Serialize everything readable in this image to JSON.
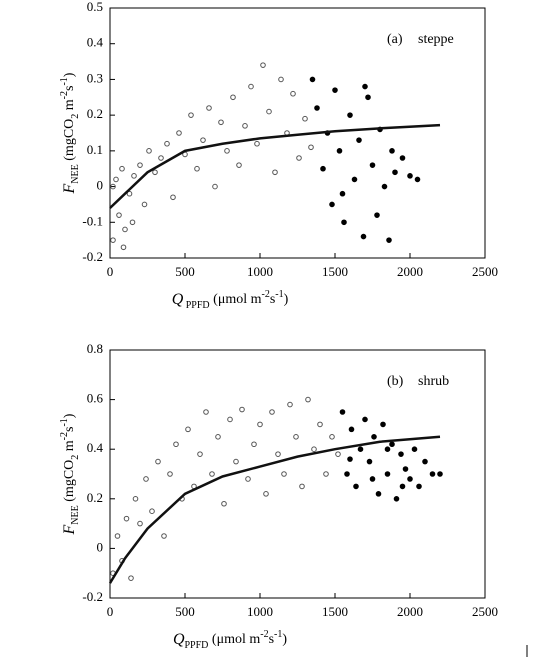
{
  "chart_data": [
    {
      "type": "scatter",
      "annotations": [
        "(a)",
        "steppe"
      ],
      "x_label_parts": [
        {
          "text": "Q",
          "style": "italic"
        },
        {
          "text": " PPFD",
          "style": "sub"
        },
        {
          "text": " (μmol m",
          "style": "normal"
        },
        {
          "text": "-2",
          "style": "sup"
        },
        {
          "text": "s",
          "style": "normal"
        },
        {
          "text": "-1",
          "style": "sup"
        },
        {
          "text": ")",
          "style": "normal"
        }
      ],
      "y_label_parts": [
        {
          "text": "F",
          "style": "italic"
        },
        {
          "text": "NEE",
          "style": "sub"
        },
        {
          "text": " (mgCO",
          "style": "normal"
        },
        {
          "text": "2",
          "style": "sub"
        },
        {
          "text": " m",
          "style": "normal"
        },
        {
          "text": "-2",
          "style": "sup"
        },
        {
          "text": "s",
          "style": "normal"
        },
        {
          "text": "-1",
          "style": "sup"
        },
        {
          "text": ")",
          "style": "normal"
        }
      ],
      "xlim": [
        0,
        2500
      ],
      "xticks": [
        0,
        500,
        1000,
        1500,
        2000,
        2500
      ],
      "ylim": [
        -0.2,
        0.5
      ],
      "yticks": [
        -0.2,
        -0.1,
        0,
        0.1,
        0.2,
        0.3,
        0.4,
        0.5
      ],
      "series": [
        {
          "mode": "open",
          "color": "#555555",
          "x": [
            20,
            40,
            60,
            80,
            100,
            130,
            160,
            200,
            230,
            260,
            300,
            340,
            380,
            420,
            460,
            500,
            540,
            580,
            620,
            660,
            700,
            740,
            780,
            820,
            860,
            900,
            940,
            980,
            1020,
            1060,
            1100,
            1140,
            1180,
            1220,
            1260,
            1300,
            1340,
            20,
            90,
            150
          ],
          "values": [
            -0.15,
            0.02,
            -0.08,
            0.05,
            -0.12,
            -0.02,
            0.03,
            0.06,
            -0.05,
            0.1,
            0.04,
            0.08,
            0.12,
            -0.03,
            0.15,
            0.09,
            0.2,
            0.05,
            0.13,
            0.22,
            0.0,
            0.18,
            0.1,
            0.25,
            0.06,
            0.17,
            0.28,
            0.12,
            0.34,
            0.21,
            0.04,
            0.3,
            0.15,
            0.26,
            0.08,
            0.19,
            0.11,
            0.0,
            -0.17,
            -0.1
          ]
        },
        {
          "mode": "filled",
          "color": "#000000",
          "x": [
            1350,
            1380,
            1420,
            1450,
            1480,
            1500,
            1530,
            1560,
            1600,
            1630,
            1660,
            1690,
            1720,
            1750,
            1780,
            1800,
            1830,
            1860,
            1880,
            1900,
            1950,
            2000,
            2050,
            1700,
            1550
          ],
          "values": [
            0.3,
            0.22,
            0.05,
            0.15,
            -0.05,
            0.27,
            0.1,
            -0.1,
            0.2,
            0.02,
            0.13,
            -0.14,
            0.25,
            0.06,
            -0.08,
            0.16,
            0.0,
            -0.15,
            0.1,
            0.04,
            0.08,
            0.03,
            0.02,
            0.28,
            -0.02
          ]
        },
        {
          "mode": "line",
          "color": "#111111",
          "x": [
            0,
            100,
            250,
            500,
            750,
            1000,
            1250,
            1500,
            1800,
            2200
          ],
          "values": [
            -0.06,
            -0.02,
            0.04,
            0.1,
            0.12,
            0.135,
            0.145,
            0.155,
            0.163,
            0.172
          ]
        }
      ]
    },
    {
      "type": "scatter",
      "annotations": [
        "(b)",
        "shrub"
      ],
      "x_label_parts": [
        {
          "text": "Q",
          "style": "italic"
        },
        {
          "text": "PPFD",
          "style": "sub"
        },
        {
          "text": " (μmol m",
          "style": "normal"
        },
        {
          "text": "-2",
          "style": "sup"
        },
        {
          "text": "s",
          "style": "normal"
        },
        {
          "text": "-1",
          "style": "sup"
        },
        {
          "text": ")",
          "style": "normal"
        }
      ],
      "y_label_parts": [
        {
          "text": "F",
          "style": "italic"
        },
        {
          "text": "NEE",
          "style": "sub"
        },
        {
          "text": " (mgCO",
          "style": "normal"
        },
        {
          "text": "2",
          "style": "sub"
        },
        {
          "text": " m",
          "style": "normal"
        },
        {
          "text": "-2",
          "style": "sup"
        },
        {
          "text": "s",
          "style": "normal"
        },
        {
          "text": "-1",
          "style": "sup"
        },
        {
          "text": ")",
          "style": "normal"
        }
      ],
      "xlim": [
        0,
        2500
      ],
      "xticks": [
        0,
        500,
        1000,
        1500,
        2000,
        2500
      ],
      "ylim": [
        -0.2,
        0.8
      ],
      "yticks": [
        -0.2,
        0,
        0.2,
        0.4,
        0.6,
        0.8
      ],
      "series": [
        {
          "mode": "open",
          "color": "#555555",
          "x": [
            20,
            50,
            80,
            110,
            140,
            170,
            200,
            240,
            280,
            320,
            360,
            400,
            440,
            480,
            520,
            560,
            600,
            640,
            680,
            720,
            760,
            800,
            840,
            880,
            920,
            960,
            1000,
            1040,
            1080,
            1120,
            1160,
            1200,
            1240,
            1280,
            1320,
            1360,
            1400,
            1440,
            1480,
            1520
          ],
          "values": [
            -0.1,
            0.05,
            -0.05,
            0.12,
            -0.12,
            0.2,
            0.1,
            0.28,
            0.15,
            0.35,
            0.05,
            0.3,
            0.42,
            0.2,
            0.48,
            0.25,
            0.38,
            0.55,
            0.3,
            0.45,
            0.18,
            0.52,
            0.35,
            0.56,
            0.28,
            0.42,
            0.5,
            0.22,
            0.55,
            0.38,
            0.3,
            0.58,
            0.45,
            0.25,
            0.6,
            0.4,
            0.5,
            0.3,
            0.45,
            0.38
          ]
        },
        {
          "mode": "filled",
          "color": "#000000",
          "x": [
            1550,
            1580,
            1610,
            1640,
            1670,
            1700,
            1730,
            1760,
            1790,
            1820,
            1850,
            1880,
            1910,
            1940,
            1970,
            2000,
            2030,
            2060,
            2100,
            2150,
            2200,
            1600,
            1750,
            1850,
            1950
          ],
          "values": [
            0.55,
            0.3,
            0.48,
            0.25,
            0.4,
            0.52,
            0.35,
            0.45,
            0.22,
            0.5,
            0.3,
            0.42,
            0.2,
            0.38,
            0.32,
            0.28,
            0.4,
            0.25,
            0.35,
            0.3,
            0.3,
            0.36,
            0.28,
            0.4,
            0.25
          ]
        },
        {
          "mode": "line",
          "color": "#111111",
          "x": [
            0,
            100,
            250,
            500,
            750,
            1000,
            1250,
            1500,
            1800,
            2200
          ],
          "values": [
            -0.14,
            -0.04,
            0.08,
            0.22,
            0.29,
            0.33,
            0.37,
            0.4,
            0.43,
            0.45
          ]
        }
      ]
    }
  ]
}
